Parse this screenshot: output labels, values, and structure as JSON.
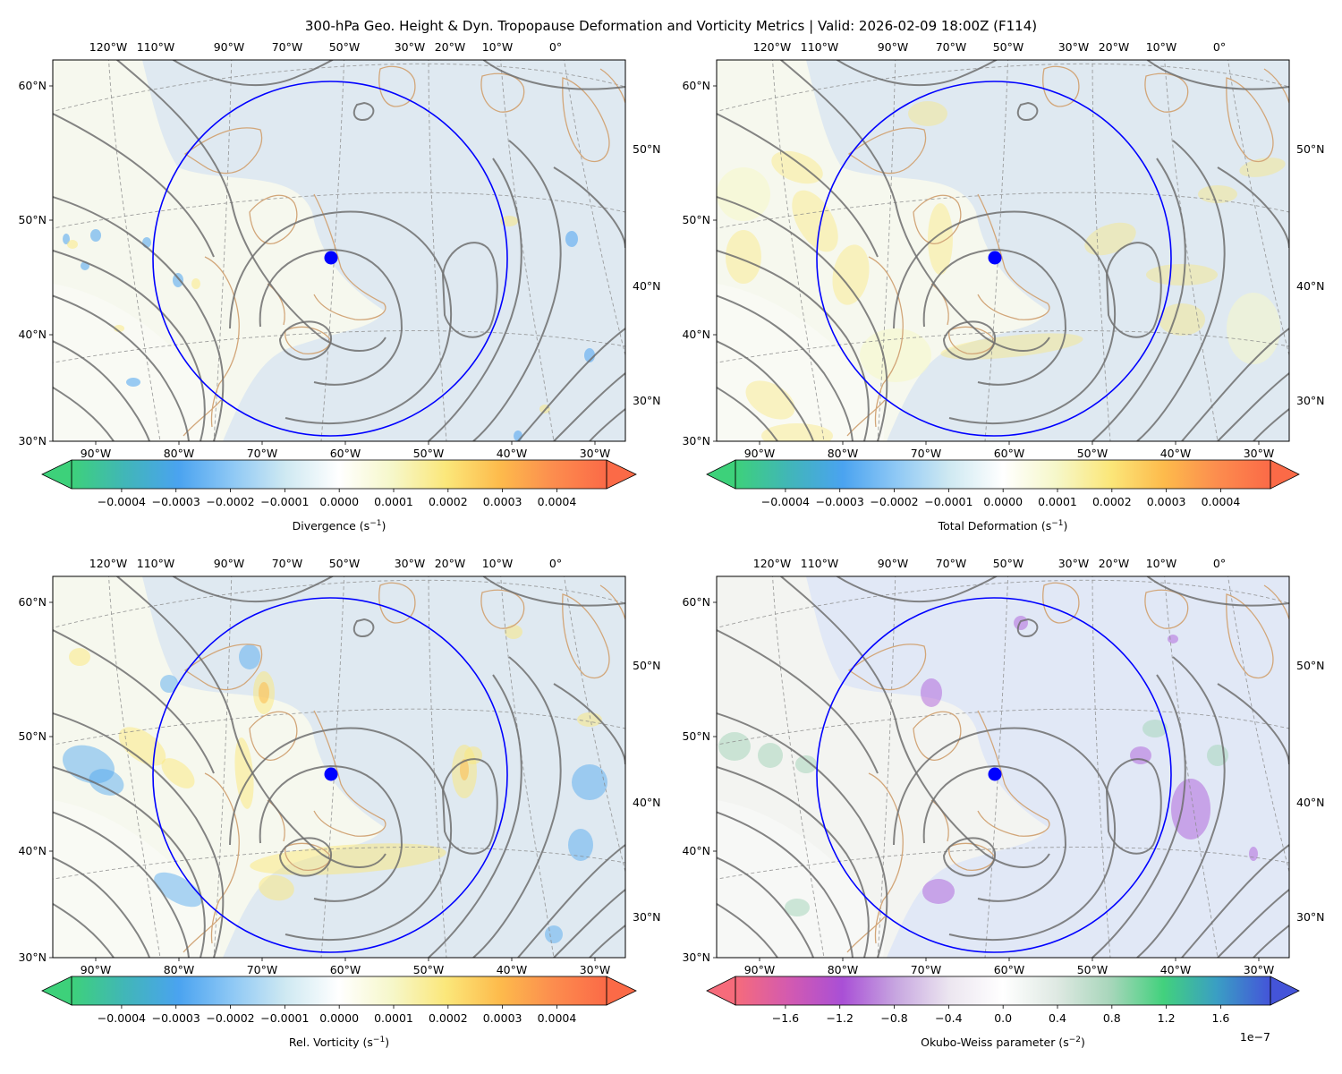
{
  "title": "300-hPa Geo. Height & Dyn. Tropopause Deformation and Vorticity Metrics |  Valid: 2026-02-09 18:00Z (F114)",
  "map": {
    "top_lon_labels": [
      "120°W",
      "110°W",
      "90°W",
      "70°W",
      "50°W",
      "30°W",
      "20°W",
      "10°W",
      "0°"
    ],
    "bottom_lon_labels": [
      "90°W",
      "80°W",
      "70°W",
      "60°W",
      "50°W",
      "40°W",
      "30°W"
    ],
    "left_lat_labels": [
      "60°N",
      "50°N",
      "40°N",
      "30°N"
    ],
    "right_lat_labels": [
      "50°N",
      "40°N",
      "30°N"
    ],
    "center_marker": "blue-dot",
    "ring_color": "#0000ff",
    "coast_color": "#d2a679",
    "contour_color": "#6e6e6e"
  },
  "panels": [
    {
      "id": "divergence",
      "colorbar_label": "Divergence",
      "colorbar_unit": "(s",
      "colorbar_exp": "−1",
      "ticks": [
        "−0.0004",
        "−0.0003",
        "−0.0002",
        "−0.0001",
        "0.0000",
        "0.0001",
        "0.0002",
        "0.0003",
        "0.0004"
      ],
      "offset_text": ""
    },
    {
      "id": "deformation",
      "colorbar_label": "Total Deformation",
      "colorbar_unit": "(s",
      "colorbar_exp": "−1",
      "ticks": [
        "−0.0004",
        "−0.0003",
        "−0.0002",
        "−0.0001",
        "0.0000",
        "0.0001",
        "0.0002",
        "0.0003",
        "0.0004"
      ],
      "offset_text": ""
    },
    {
      "id": "vorticity",
      "colorbar_label": "Rel. Vorticity",
      "colorbar_unit": "(s",
      "colorbar_exp": "−1",
      "ticks": [
        "−0.0004",
        "−0.0003",
        "−0.0002",
        "−0.0001",
        "0.0000",
        "0.0001",
        "0.0002",
        "0.0003",
        "0.0004"
      ],
      "offset_text": ""
    },
    {
      "id": "okubo-weiss",
      "colorbar_label": "Okubo-Weiss parameter",
      "colorbar_unit": "(s",
      "colorbar_exp": "−2",
      "ticks": [
        "−1.6",
        "−1.2",
        "−0.8",
        "−0.4",
        "0.0",
        "0.4",
        "0.8",
        "1.2",
        "1.6"
      ],
      "offset_text": "1e−7"
    }
  ],
  "colormaps": {
    "diverging": [
      "#3dd17a",
      "#41b6b8",
      "#4aa3f0",
      "#8ec8f5",
      "#cfe9f2",
      "#ffffff",
      "#f6f7c9",
      "#fbe77a",
      "#fdbb4c",
      "#fc8d4e",
      "#fb6a47"
    ],
    "okubo": [
      "#f66b7b",
      "#d35ab0",
      "#a94fd6",
      "#c7a6e0",
      "#ece6f0",
      "#ffffff",
      "#dfe9e3",
      "#a8d6bb",
      "#42d17d",
      "#3a9ec4",
      "#4454d9"
    ]
  }
}
